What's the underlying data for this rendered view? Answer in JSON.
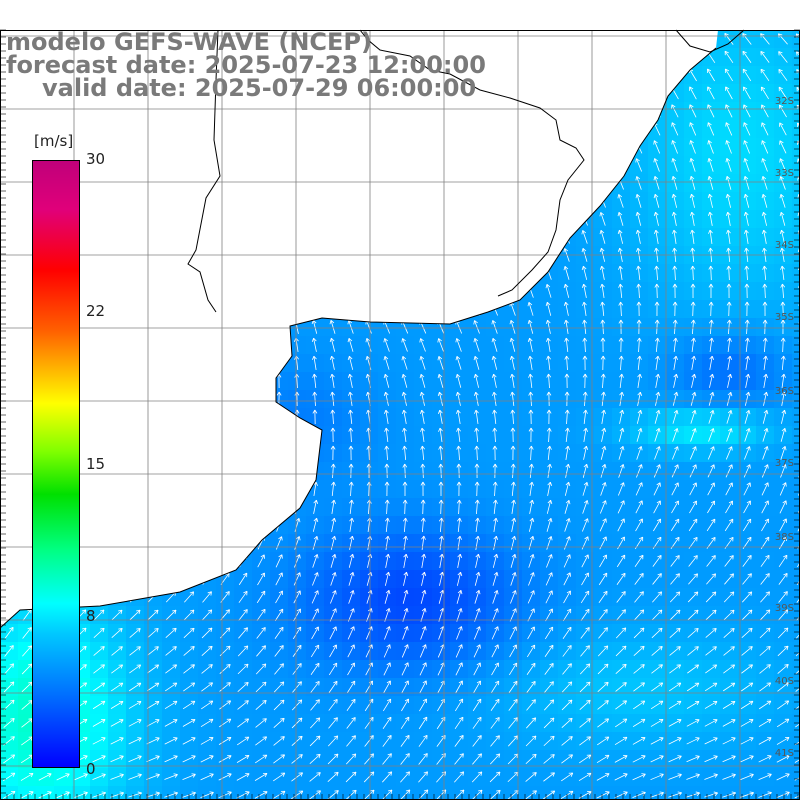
{
  "header": {
    "model": "modelo GEFS-WAVE (NCEP)",
    "forecast": "forecast date: 2025-07-23 12:00:00",
    "valid": "valid date: 2025-07-29 06:00:00"
  },
  "colorbar": {
    "unit": "[m/s]",
    "ticks": [
      "30",
      "22",
      "15",
      "8",
      "0"
    ],
    "colors": [
      "#0000ff",
      "#00c8ff",
      "#00ffff",
      "#00e000",
      "#ffff00",
      "#ff6000",
      "#ff0000",
      "#c0007a"
    ]
  },
  "lat_labels": [
    "32S",
    "33S",
    "34S",
    "35S",
    "36S",
    "37S",
    "38S",
    "39S",
    "40S",
    "41S"
  ],
  "colors": {
    "land": "#ffffff",
    "grid": "#808080",
    "coast": "#000000",
    "arrow": "#ffffff",
    "title": "#7a7a7a"
  }
}
